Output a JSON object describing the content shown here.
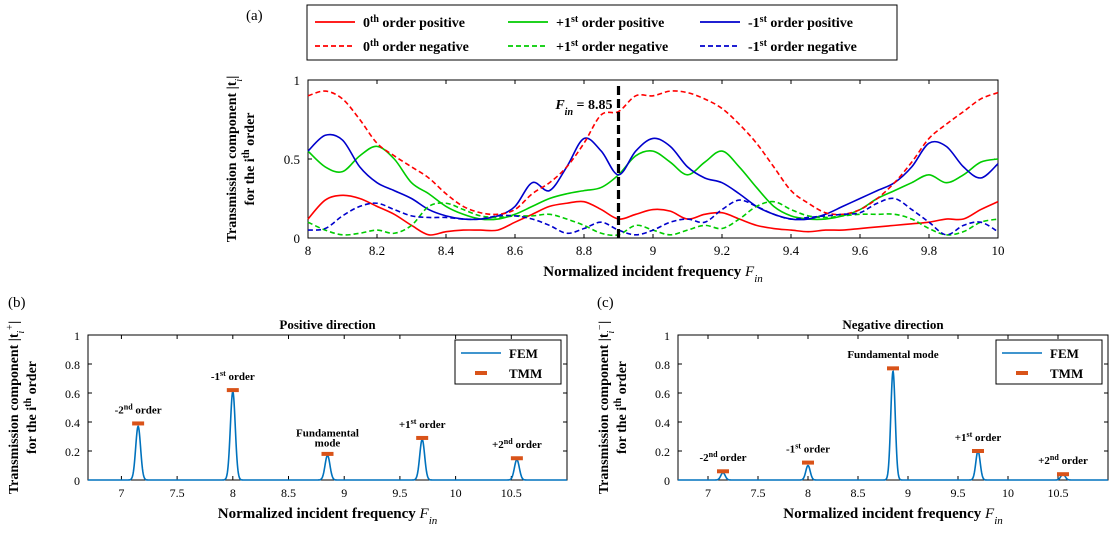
{
  "chart_data": [
    {
      "panel_label": "(a)",
      "type": "line",
      "title": "",
      "xlabel": "Normalized incident frequency F_in",
      "xlabel_main": "Normalized incident frequency",
      "xlabel_var": "F",
      "xlabel_sub": "in",
      "ylabel_line1": "Transmission component |t_i|",
      "ylabel_line1_main": "Transmission component |t",
      "ylabel_line1_sub": "i",
      "ylabel_line1_end": "|",
      "ylabel_line2": "for the i^th order",
      "ylabel_line2_main": "for the i",
      "ylabel_line2_sup": "th",
      "ylabel_line2_end": " order",
      "xlim": [
        8,
        10
      ],
      "ylim": [
        0,
        1
      ],
      "xticks": [
        8,
        8.2,
        8.4,
        8.6,
        8.8,
        9,
        9.2,
        9.4,
        9.6,
        9.8,
        10
      ],
      "xticklabels": [
        "8",
        "8.2",
        "8.4",
        "8.6",
        "8.8",
        "9",
        "9.2",
        "9.4",
        "9.6",
        "9.8",
        "10"
      ],
      "yticks": [
        0,
        0.5,
        1
      ],
      "yticklabels": [
        "0",
        "0.5",
        "1"
      ],
      "annotation": {
        "text": "F_in = 8.85",
        "var": "F",
        "sub": "in",
        "rest": " = 8.85",
        "x": 8.9
      },
      "legend_position": "top",
      "x": [
        8.0,
        8.05,
        8.1,
        8.15,
        8.2,
        8.25,
        8.3,
        8.35,
        8.4,
        8.45,
        8.5,
        8.55,
        8.6,
        8.65,
        8.7,
        8.75,
        8.8,
        8.85,
        8.9,
        8.95,
        9.0,
        9.05,
        9.1,
        9.15,
        9.2,
        9.25,
        9.3,
        9.35,
        9.4,
        9.45,
        9.5,
        9.55,
        9.6,
        9.65,
        9.7,
        9.75,
        9.8,
        9.85,
        9.9,
        9.95,
        10.0
      ],
      "series": [
        {
          "name": "0th order positive",
          "name_main": "0",
          "name_sup": "th",
          "name_rest": " order positive",
          "color": "#ff0000",
          "dash": "solid",
          "values": [
            0.12,
            0.24,
            0.27,
            0.25,
            0.2,
            0.15,
            0.08,
            0.02,
            0.04,
            0.05,
            0.05,
            0.05,
            0.1,
            0.15,
            0.2,
            0.22,
            0.23,
            0.18,
            0.12,
            0.15,
            0.18,
            0.17,
            0.12,
            0.15,
            0.16,
            0.12,
            0.08,
            0.06,
            0.05,
            0.04,
            0.05,
            0.05,
            0.06,
            0.07,
            0.08,
            0.09,
            0.1,
            0.12,
            0.12,
            0.18,
            0.23
          ]
        },
        {
          "name": "+1st order positive",
          "name_main": "+1",
          "name_sup": "st",
          "name_rest": " order positive",
          "color": "#00cc00",
          "dash": "solid",
          "values": [
            0.55,
            0.45,
            0.42,
            0.52,
            0.58,
            0.5,
            0.35,
            0.28,
            0.2,
            0.15,
            0.12,
            0.12,
            0.15,
            0.2,
            0.25,
            0.28,
            0.3,
            0.32,
            0.4,
            0.52,
            0.55,
            0.48,
            0.4,
            0.48,
            0.55,
            0.45,
            0.32,
            0.2,
            0.14,
            0.12,
            0.12,
            0.14,
            0.18,
            0.25,
            0.3,
            0.35,
            0.4,
            0.35,
            0.4,
            0.48,
            0.5
          ]
        },
        {
          "name": "-1st order positive",
          "name_main": "-1",
          "name_sup": "st",
          "name_rest": " order positive",
          "color": "#0000cc",
          "dash": "solid",
          "values": [
            0.55,
            0.65,
            0.62,
            0.45,
            0.35,
            0.3,
            0.25,
            0.18,
            0.14,
            0.12,
            0.12,
            0.14,
            0.2,
            0.35,
            0.3,
            0.45,
            0.63,
            0.55,
            0.4,
            0.55,
            0.63,
            0.58,
            0.45,
            0.38,
            0.35,
            0.28,
            0.2,
            0.15,
            0.12,
            0.12,
            0.15,
            0.2,
            0.25,
            0.3,
            0.35,
            0.45,
            0.6,
            0.58,
            0.45,
            0.38,
            0.47
          ]
        },
        {
          "name": "0th order negative",
          "name_main": "0",
          "name_sup": "th",
          "name_rest": " order negative",
          "color": "#ff0000",
          "dash": "dashed",
          "values": [
            0.9,
            0.93,
            0.88,
            0.75,
            0.6,
            0.52,
            0.45,
            0.38,
            0.28,
            0.2,
            0.16,
            0.15,
            0.18,
            0.28,
            0.35,
            0.45,
            0.6,
            0.78,
            0.8,
            0.9,
            0.9,
            0.93,
            0.92,
            0.88,
            0.82,
            0.72,
            0.6,
            0.45,
            0.3,
            0.22,
            0.16,
            0.15,
            0.18,
            0.25,
            0.35,
            0.48,
            0.63,
            0.72,
            0.8,
            0.88,
            0.92
          ]
        },
        {
          "name": "+1st order negative",
          "name_main": "+1",
          "name_sup": "st",
          "name_rest": " order negative",
          "color": "#00cc00",
          "dash": "dashed",
          "values": [
            0.1,
            0.05,
            0.02,
            0.03,
            0.05,
            0.03,
            0.08,
            0.2,
            0.22,
            0.18,
            0.14,
            0.13,
            0.14,
            0.14,
            0.15,
            0.12,
            0.08,
            0.03,
            0.02,
            0.08,
            0.05,
            0.02,
            0.05,
            0.08,
            0.06,
            0.12,
            0.2,
            0.23,
            0.18,
            0.14,
            0.13,
            0.14,
            0.15,
            0.15,
            0.15,
            0.12,
            0.06,
            0.02,
            0.04,
            0.1,
            0.12
          ]
        },
        {
          "name": "-1st order negative",
          "name_main": "-1",
          "name_sup": "st",
          "name_rest": " order negative",
          "color": "#0000cc",
          "dash": "dashed",
          "values": [
            0.05,
            0.06,
            0.14,
            0.2,
            0.22,
            0.18,
            0.14,
            0.13,
            0.13,
            0.12,
            0.12,
            0.14,
            0.14,
            0.12,
            0.08,
            0.03,
            0.06,
            0.1,
            0.05,
            0.02,
            0.05,
            0.1,
            0.12,
            0.1,
            0.18,
            0.24,
            0.2,
            0.15,
            0.12,
            0.13,
            0.14,
            0.15,
            0.16,
            0.22,
            0.25,
            0.18,
            0.1,
            0.02,
            0.08,
            0.1,
            0.04
          ]
        }
      ]
    },
    {
      "panel_label": "(b)",
      "type": "line",
      "title": "Positive direction",
      "xlabel": "Normalized incident frequency F_in",
      "xlabel_main": "Normalized incident frequency",
      "xlabel_var": "F",
      "xlabel_sub": "in",
      "ylabel_line1": "Transmission component |t_i^+|",
      "ylabel_line1_main": "Transmission component |t",
      "ylabel_line1_sub": "i",
      "ylabel_line1_sup": "+",
      "ylabel_line1_end": "|",
      "ylabel_line2": "for the i^th order",
      "ylabel_line2_main": "for the i",
      "ylabel_line2_sup": "th",
      "ylabel_line2_end": " order",
      "xlim": [
        6.7,
        11.0
      ],
      "ylim": [
        0,
        1
      ],
      "xticks": [
        7,
        7.5,
        8,
        8.5,
        9,
        9.5,
        10,
        10.5
      ],
      "xticklabels": [
        "7",
        "7.5",
        "8",
        "8.5",
        "9",
        "9.5",
        "10",
        "10.5"
      ],
      "yticks": [
        0,
        0.2,
        0.4,
        0.6,
        0.8,
        1
      ],
      "yticklabels": [
        "0",
        "0.2",
        "0.4",
        "0.6",
        "0.8",
        "1"
      ],
      "legend_position": "top-right",
      "series": [
        {
          "name": "FEM",
          "color": "#0072bd",
          "style": "line",
          "peaks": [
            {
              "x": 7.15,
              "y": 0.37
            },
            {
              "x": 8.0,
              "y": 0.61
            },
            {
              "x": 8.85,
              "y": 0.17
            },
            {
              "x": 9.7,
              "y": 0.28
            },
            {
              "x": 10.55,
              "y": 0.14
            }
          ]
        },
        {
          "name": "TMM",
          "color": "#d95319",
          "style": "marker",
          "points": [
            {
              "x": 7.15,
              "y": 0.39
            },
            {
              "x": 8.0,
              "y": 0.62
            },
            {
              "x": 8.85,
              "y": 0.18
            },
            {
              "x": 9.7,
              "y": 0.29
            },
            {
              "x": 10.55,
              "y": 0.15
            }
          ]
        }
      ],
      "annotations": [
        {
          "main": "-2",
          "sup": "nd",
          "rest": " order",
          "x": 7.15,
          "y": 0.46
        },
        {
          "main": "-1",
          "sup": "st",
          "rest": " order",
          "x": 8.0,
          "y": 0.69
        },
        {
          "main": "Fundamental",
          "sup": "",
          "rest": "",
          "x": 8.85,
          "y": 0.3
        },
        {
          "main": "mode",
          "sup": "",
          "rest": "",
          "x": 8.85,
          "y": 0.23
        },
        {
          "main": "+1",
          "sup": "st",
          "rest": " order",
          "x": 9.7,
          "y": 0.36
        },
        {
          "main": "+2",
          "sup": "nd",
          "rest": " order",
          "x": 10.55,
          "y": 0.22
        }
      ]
    },
    {
      "panel_label": "(c)",
      "type": "line",
      "title": "Negative direction",
      "xlabel": "Normalized incident frequency F_in",
      "xlabel_main": "Normalized incident frequency",
      "xlabel_var": "F",
      "xlabel_sub": "in",
      "ylabel_line1": "Transmission component |t_i^-|",
      "ylabel_line1_main": "Transmission component |t",
      "ylabel_line1_sub": "i",
      "ylabel_line1_sup": "−",
      "ylabel_line1_end": "|",
      "ylabel_line2": "for the i^th order",
      "ylabel_line2_main": "for the i",
      "ylabel_line2_sup": "th",
      "ylabel_line2_end": " order",
      "xlim": [
        6.7,
        11.0
      ],
      "ylim": [
        0,
        1
      ],
      "xticks": [
        7,
        7.5,
        8,
        8.5,
        9,
        9.5,
        10,
        10.5
      ],
      "xticklabels": [
        "7",
        "7.5",
        "8",
        "8.5",
        "9",
        "9.5",
        "10",
        "10.5"
      ],
      "yticks": [
        0,
        0.2,
        0.4,
        0.6,
        0.8,
        1
      ],
      "yticklabels": [
        "0",
        "0.2",
        "0.4",
        "0.6",
        "0.8",
        "1"
      ],
      "legend_position": "top-right",
      "series": [
        {
          "name": "FEM",
          "color": "#0072bd",
          "style": "line",
          "peaks": [
            {
              "x": 7.15,
              "y": 0.05
            },
            {
              "x": 8.0,
              "y": 0.1
            },
            {
              "x": 8.85,
              "y": 0.75
            },
            {
              "x": 9.7,
              "y": 0.2
            },
            {
              "x": 10.55,
              "y": 0.04
            }
          ]
        },
        {
          "name": "TMM",
          "color": "#d95319",
          "style": "marker",
          "points": [
            {
              "x": 7.15,
              "y": 0.06
            },
            {
              "x": 8.0,
              "y": 0.12
            },
            {
              "x": 8.85,
              "y": 0.77
            },
            {
              "x": 9.7,
              "y": 0.2
            },
            {
              "x": 10.55,
              "y": 0.04
            }
          ]
        }
      ],
      "annotations": [
        {
          "main": "-2",
          "sup": "nd",
          "rest": " order",
          "x": 7.15,
          "y": 0.13
        },
        {
          "main": "-1",
          "sup": "st",
          "rest": " order",
          "x": 8.0,
          "y": 0.19
        },
        {
          "main": "Fundamental mode",
          "sup": "",
          "rest": "",
          "x": 8.85,
          "y": 0.84
        },
        {
          "main": "+1",
          "sup": "st",
          "rest": " order",
          "x": 9.7,
          "y": 0.27
        },
        {
          "main": "+2",
          "sup": "nd",
          "rest": " order",
          "x": 10.55,
          "y": 0.11
        }
      ]
    }
  ]
}
